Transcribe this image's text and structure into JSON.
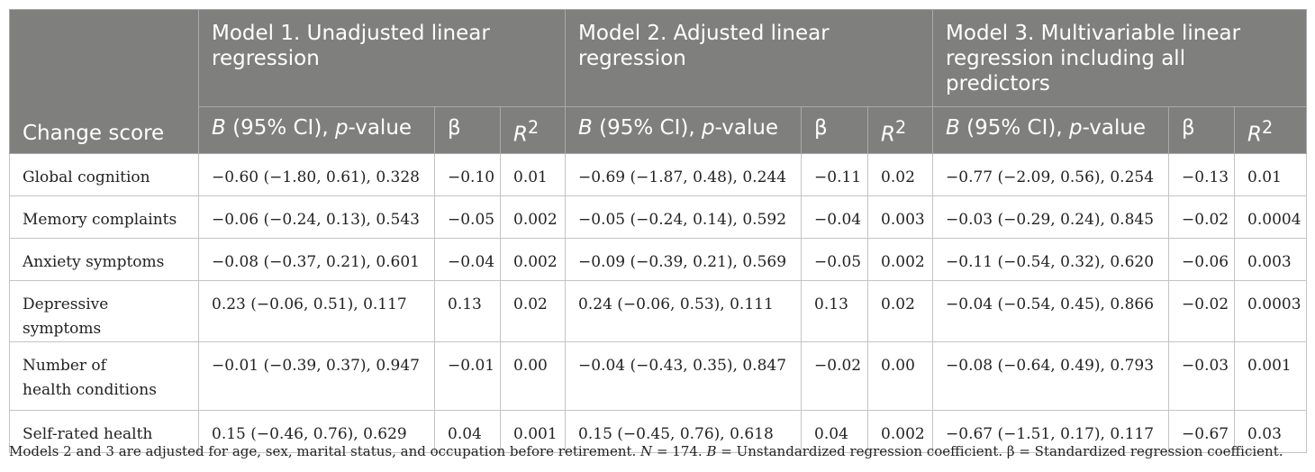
{
  "header": {
    "row_label": "Change score",
    "models": [
      "Model 1. Unadjusted linear regression",
      "Model 2. Adjusted linear regression",
      "Model 3. Multivariable linear regression including all predictors"
    ],
    "sub": {
      "b_prefix": "B",
      "b_middle": " (95% CI), ",
      "p_prefix": "p",
      "p_suffix": "-value",
      "beta": "β",
      "r2_base": "R",
      "r2_sup": "2"
    }
  },
  "rows": [
    {
      "label": "Global cognition",
      "m1": [
        "−0.60 (−1.80, 0.61), 0.328",
        "−0.10",
        "0.01"
      ],
      "m2": [
        "−0.69 (−1.87, 0.48), 0.244",
        "−0.11",
        "0.02"
      ],
      "m3": [
        "−0.77 (−2.09, 0.56), 0.254",
        "−0.13",
        "0.01"
      ]
    },
    {
      "label": "Memory complaints",
      "m1": [
        "−0.06 (−0.24, 0.13), 0.543",
        "−0.05",
        "0.002"
      ],
      "m2": [
        "−0.05 (−0.24, 0.14), 0.592",
        "−0.04",
        "0.003"
      ],
      "m3": [
        "−0.03 (−0.29, 0.24), 0.845",
        "−0.02",
        "0.0004"
      ]
    },
    {
      "label": "Anxiety symptoms",
      "m1": [
        "−0.08 (−0.37, 0.21), 0.601",
        "−0.04",
        "0.002"
      ],
      "m2": [
        "−0.09 (−0.39, 0.21), 0.569",
        "−0.05",
        "0.002"
      ],
      "m3": [
        "−0.11 (−0.54, 0.32), 0.620",
        "−0.06",
        "0.003"
      ]
    },
    {
      "label": "Depressive symptoms",
      "m1": [
        "0.23 (−0.06, 0.51), 0.117",
        "0.13",
        "0.02"
      ],
      "m2": [
        "0.24 (−0.06, 0.53), 0.111",
        "0.13",
        "0.02"
      ],
      "m3": [
        "−0.04 (−0.54, 0.45), 0.866",
        "−0.02",
        "0.0003"
      ]
    },
    {
      "label_lines": [
        "Number of",
        "health conditions"
      ],
      "m1": [
        "−0.01 (−0.39, 0.37), 0.947",
        "−0.01",
        "0.00"
      ],
      "m2": [
        "−0.04 (−0.43, 0.35), 0.847",
        "−0.02",
        "0.00"
      ],
      "m3": [
        "−0.08 (−0.64, 0.49), 0.793",
        "−0.03",
        "0.001"
      ]
    },
    {
      "label": "Self-rated health",
      "m1": [
        "0.15 (−0.46, 0.76), 0.629",
        "0.04",
        "0.001"
      ],
      "m2": [
        "0.15 (−0.45, 0.76), 0.618",
        "0.04",
        "0.002"
      ],
      "m3": [
        "−0.67 (−1.51, 0.17), 0.117",
        "−0.67",
        "0.03"
      ]
    }
  ],
  "footnote": {
    "part1": "Models 2 and 3 are adjusted for age, sex, marital status, and occupation before retirement. ",
    "n_symbol": "N",
    "part2": " = 174. ",
    "b_symbol": "B",
    "part3": " = Unstandardized regression coefficient. β = Standardized regression coefficient."
  }
}
